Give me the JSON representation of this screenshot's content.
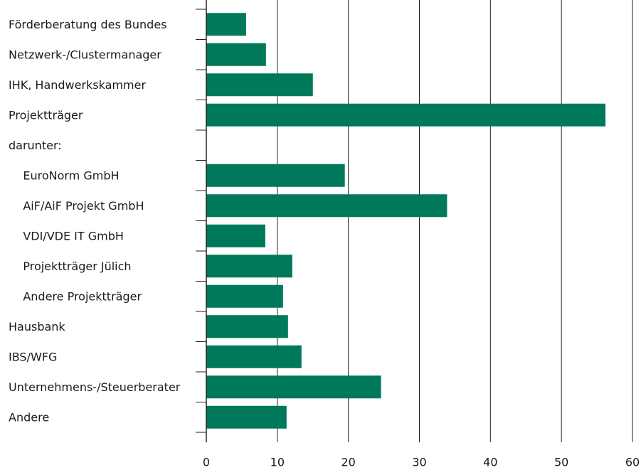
{
  "chart_data": {
    "type": "barh",
    "categories": [
      "Förderberatung des Bundes",
      "Netzwerk-/Clustermanager",
      "IHK, Handwerkskammer",
      "Projektträger",
      "darunter:",
      "    EuroNorm GmbH",
      "    AiF/AiF Projekt GmbH",
      "    VDI/VDE IT GmbH",
      "    Projektträger Jülich",
      "    Andere Projektträger",
      "Hausbank",
      "IBS/WFG",
      "Unternehmens-/Steuerberater",
      "Andere"
    ],
    "values": [
      5.6,
      8.4,
      15,
      56.2,
      null,
      19.5,
      33.9,
      8.3,
      12.1,
      10.8,
      11.5,
      13.4,
      24.6,
      11.3
    ],
    "color": "#00785a",
    "xlim": [
      0,
      60
    ],
    "xticks": [
      0,
      10,
      20,
      30,
      40,
      50,
      60
    ],
    "grid": true
  }
}
